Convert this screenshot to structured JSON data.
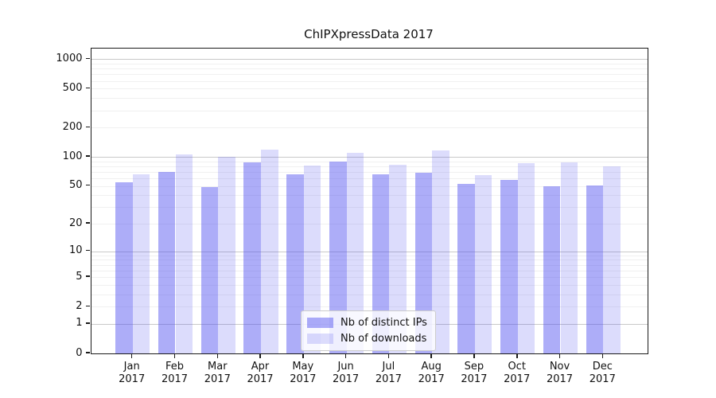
{
  "chart_data": {
    "type": "bar",
    "title": "ChIPXpressData 2017",
    "categories": [
      "Jan",
      "Feb",
      "Mar",
      "Apr",
      "May",
      "Jun",
      "Jul",
      "Aug",
      "Sep",
      "Oct",
      "Nov",
      "Dec"
    ],
    "category_year": "2017",
    "series": [
      {
        "name": "Nb of distinct IPs",
        "color": "rgba(80,80,240,0.47)",
        "values": [
          55,
          70,
          49,
          88,
          66,
          90,
          66,
          68,
          53,
          58,
          50,
          51
        ]
      },
      {
        "name": "Nb of downloads",
        "color": "rgba(80,80,240,0.2)",
        "values": [
          66,
          107,
          100,
          118,
          81,
          111,
          83,
          117,
          65,
          86,
          88,
          80
        ]
      }
    ],
    "y_scale": "log1p",
    "y_ticks": [
      0,
      1,
      2,
      5,
      10,
      20,
      50,
      100,
      200,
      500,
      1000
    ],
    "y_minor_ticks": [
      3,
      4,
      6,
      7,
      8,
      9,
      30,
      40,
      60,
      70,
      80,
      90,
      300,
      400,
      600,
      700,
      800,
      900
    ],
    "ylim": [
      0,
      1280
    ],
    "xlabel": "",
    "ylabel": "",
    "grid": "major+minor horizontal",
    "legend_position": "lower-center",
    "colors": {
      "bar_base": "#5050f0",
      "major_grid": "#c9c9c9",
      "minor_grid": "#f0f0f0",
      "spine": "#1a1a1a",
      "background": "#ffffff"
    }
  }
}
